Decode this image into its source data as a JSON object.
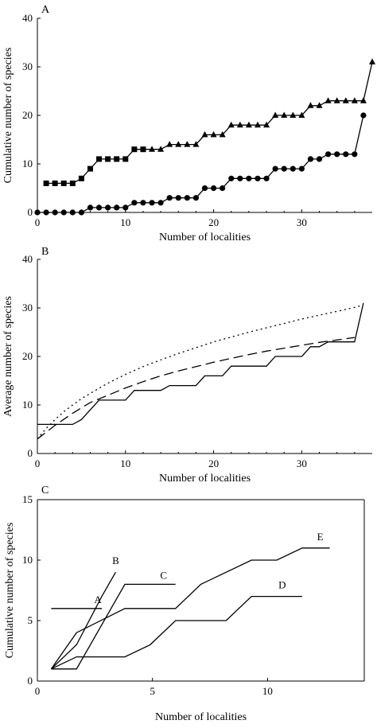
{
  "chart_data": [
    {
      "panel": "A",
      "type": "line",
      "xlabel": "Number of localities",
      "ylabel": "Cumulative number of species",
      "xlim": [
        0,
        38
      ],
      "ylim": [
        0,
        40
      ],
      "xticks": [
        0,
        10,
        20,
        30
      ],
      "yticks": [
        0,
        10,
        20,
        30,
        40
      ],
      "series": [
        {
          "marker": "square-then-triangle",
          "x": [
            1,
            2,
            3,
            4,
            5,
            6,
            7,
            8,
            9,
            10,
            11,
            12,
            13,
            14,
            15,
            16,
            17,
            18,
            19,
            20,
            21,
            22,
            23,
            24,
            25,
            26,
            27,
            28,
            29,
            30,
            31,
            32,
            33,
            34,
            35,
            36,
            37,
            38
          ],
          "y": [
            6,
            6,
            6,
            6,
            7,
            9,
            11,
            11,
            11,
            11,
            13,
            13,
            13,
            13,
            14,
            14,
            14,
            14,
            16,
            16,
            16,
            18,
            18,
            18,
            18,
            18,
            20,
            20,
            20,
            20,
            22,
            22,
            23,
            23,
            23,
            23,
            23,
            31
          ],
          "marker_split": 12
        },
        {
          "marker": "circle",
          "x": [
            0,
            1,
            2,
            3,
            4,
            5,
            6,
            7,
            8,
            9,
            10,
            11,
            12,
            13,
            14,
            15,
            16,
            17,
            18,
            19,
            20,
            21,
            22,
            23,
            24,
            25,
            26,
            27,
            28,
            29,
            30,
            31,
            32,
            33,
            34,
            35,
            36,
            37
          ],
          "y": [
            0,
            0,
            0,
            0,
            0,
            0,
            1,
            1,
            1,
            1,
            1,
            2,
            2,
            2,
            2,
            3,
            3,
            3,
            3,
            5,
            5,
            5,
            7,
            7,
            7,
            7,
            7,
            9,
            9,
            9,
            9,
            11,
            11,
            12,
            12,
            12,
            12,
            20
          ]
        }
      ]
    },
    {
      "panel": "B",
      "type": "line",
      "xlabel": "Number of localities",
      "ylabel": "Average number of species",
      "xlim": [
        0,
        38
      ],
      "ylim": [
        0,
        40
      ],
      "xticks": [
        0,
        10,
        20,
        30
      ],
      "yticks": [
        0,
        10,
        20,
        30,
        40
      ],
      "series": [
        {
          "style": "solid",
          "x": [
            0,
            1,
            2,
            3,
            4,
            5,
            6,
            7,
            8,
            9,
            10,
            11,
            12,
            13,
            14,
            15,
            16,
            17,
            18,
            19,
            20,
            21,
            22,
            23,
            24,
            25,
            26,
            27,
            28,
            29,
            30,
            31,
            32,
            33,
            34,
            35,
            36,
            37
          ],
          "y": [
            6,
            6,
            6,
            6,
            6,
            7,
            9,
            11,
            11,
            11,
            11,
            13,
            13,
            13,
            13,
            14,
            14,
            14,
            14,
            16,
            16,
            16,
            18,
            18,
            18,
            18,
            18,
            20,
            20,
            20,
            20,
            22,
            22,
            23,
            23,
            23,
            23,
            31
          ]
        },
        {
          "style": "dashed",
          "x": [
            0,
            2,
            4,
            6,
            8,
            10,
            12,
            14,
            16,
            18,
            20,
            22,
            24,
            26,
            28,
            30,
            32,
            34,
            36
          ],
          "y": [
            3,
            5.8,
            8.3,
            10.5,
            12,
            13.5,
            14.8,
            16,
            17,
            17.9,
            18.8,
            19.6,
            20.4,
            21.1,
            21.7,
            22.3,
            22.9,
            23.4,
            23.9
          ]
        },
        {
          "style": "dotted",
          "x": [
            0,
            1,
            2,
            3,
            4,
            5,
            6,
            8,
            10,
            12,
            14,
            16,
            18,
            20,
            22,
            24,
            26,
            28,
            30,
            32,
            34,
            36,
            37
          ],
          "y": [
            3,
            5.2,
            7,
            8.6,
            10,
            11.3,
            12.4,
            14.5,
            16.3,
            17.9,
            19.3,
            20.6,
            21.8,
            23,
            24,
            25,
            25.9,
            26.8,
            27.7,
            28.5,
            29.3,
            30.1,
            30.6
          ]
        }
      ]
    },
    {
      "panel": "C",
      "type": "line",
      "xlabel": "Number of localities",
      "ylabel": "Cumulative number of species",
      "xlim": [
        0,
        14.2
      ],
      "ylim": [
        0,
        15
      ],
      "xticks": [
        0,
        5,
        10
      ],
      "yticks": [
        0,
        5,
        10,
        15
      ],
      "series": [
        {
          "name": "A",
          "x": [
            0.6,
            2.8
          ],
          "y": [
            6,
            6
          ]
        },
        {
          "name": "B",
          "x": [
            0.6,
            1.7,
            2.8,
            3.4
          ],
          "y": [
            1,
            3,
            7,
            9
          ]
        },
        {
          "name": "C",
          "x": [
            0.6,
            1.7,
            3.8,
            6.0
          ],
          "y": [
            1,
            1,
            8,
            8
          ]
        },
        {
          "name": "D",
          "x": [
            0.6,
            1.7,
            3.8,
            4.9,
            6.0,
            8.2,
            9.3,
            11.5
          ],
          "y": [
            1,
            2,
            2,
            3,
            5,
            5,
            7,
            7
          ]
        },
        {
          "name": "E",
          "x": [
            0.6,
            1.7,
            3.8,
            6.0,
            7.1,
            9.3,
            10.4,
            11.5,
            12.7
          ],
          "y": [
            1,
            4,
            6,
            6,
            8,
            10,
            10,
            11,
            11
          ]
        }
      ]
    }
  ]
}
